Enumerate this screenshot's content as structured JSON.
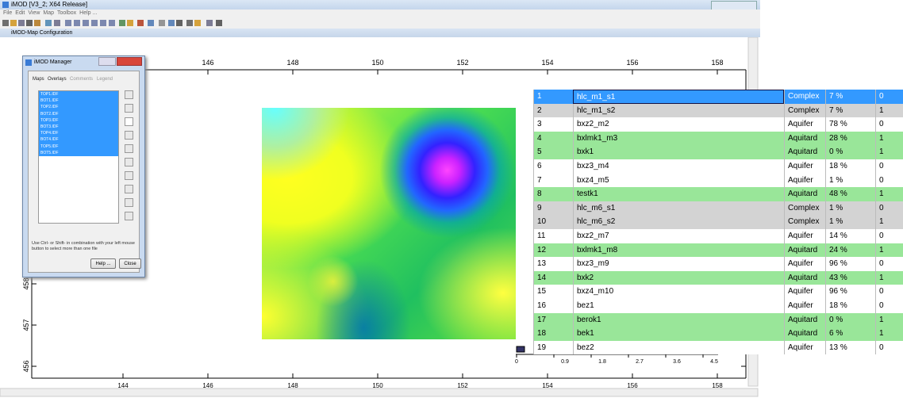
{
  "window": {
    "title": "iMOD [V3_2; X64 Release]"
  },
  "menu": [
    "File",
    "Edit",
    "View",
    "Map",
    "Toolbox",
    "Help ..."
  ],
  "map_window": {
    "title": "iMOD-Map Configuration",
    "x_axis_labels": [
      "144",
      "146",
      "148",
      "150",
      "152",
      "154",
      "156",
      "158"
    ],
    "y_axis_labels": [
      "458",
      "457",
      "456"
    ],
    "legend_labels": [
      "0",
      "0.9",
      "1.8",
      "2.7",
      "3.6",
      "4.5"
    ]
  },
  "manager": {
    "title": "iMOD Manager",
    "tabs": [
      "Maps",
      "Overlays",
      "Comments",
      "Legend"
    ],
    "files": [
      "TOP1.IDF",
      "BOT1.IDF",
      "TOP2.IDF",
      "BOT2.IDF",
      "TOP3.IDF",
      "BOT3.IDF",
      "TOP4.IDF",
      "BOT4.IDF",
      "TOP5.IDF",
      "BOT5.IDF"
    ],
    "hint": "Use Ctrl- or Shift- in combination with your left mouse button to select more than one file",
    "buttons": [
      "Help ...",
      "Close"
    ]
  },
  "table": {
    "rows": [
      [
        "1",
        "hlc_m1_s1",
        "Complex",
        "7 %",
        "0"
      ],
      [
        "2",
        "hlc_m1_s2",
        "Complex",
        "7 %",
        "1"
      ],
      [
        "3",
        "bxz2_m2",
        "Aquifer",
        "78 %",
        "0"
      ],
      [
        "4",
        "bxlmk1_m3",
        "Aquitard",
        "28 %",
        "1"
      ],
      [
        "5",
        "bxk1",
        "Aquitard",
        "0 %",
        "1"
      ],
      [
        "6",
        "bxz3_m4",
        "Aquifer",
        "18 %",
        "0"
      ],
      [
        "7",
        "bxz4_m5",
        "Aquifer",
        "1 %",
        "0"
      ],
      [
        "8",
        "testk1",
        "Aquitard",
        "48 %",
        "1"
      ],
      [
        "9",
        "hlc_m6_s1",
        "Complex",
        "1 %",
        "0"
      ],
      [
        "10",
        "hlc_m6_s2",
        "Complex",
        "1 %",
        "1"
      ],
      [
        "11",
        "bxz2_m7",
        "Aquifer",
        "14 %",
        "0"
      ],
      [
        "12",
        "bxlmk1_m8",
        "Aquitard",
        "24 %",
        "1"
      ],
      [
        "13",
        "bxz3_m9",
        "Aquifer",
        "96 %",
        "0"
      ],
      [
        "14",
        "bxk2",
        "Aquitard",
        "43 %",
        "1"
      ],
      [
        "15",
        "bxz4_m10",
        "Aquifer",
        "96 %",
        "0"
      ],
      [
        "16",
        "bez1",
        "Aquifer",
        "18 %",
        "0"
      ],
      [
        "17",
        "berok1",
        "Aquitard",
        "0 %",
        "1"
      ],
      [
        "18",
        "bek1",
        "Aquitard",
        "6 %",
        "1"
      ],
      [
        "19",
        "bez2",
        "Aquifer",
        "13 %",
        "0"
      ]
    ]
  }
}
